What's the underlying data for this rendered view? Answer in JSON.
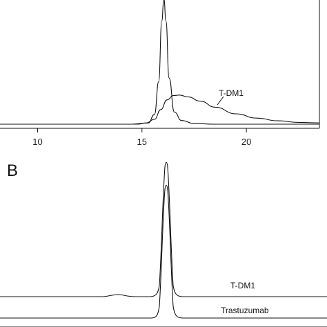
{
  "panels": {
    "a": {
      "letter": ""
    },
    "b": {
      "letter": "B"
    }
  },
  "chart_data": [
    {
      "type": "line",
      "xlabel": "",
      "ylabel": "",
      "xlim": [
        8.2,
        23.5
      ],
      "xticks": [
        10,
        15,
        20
      ],
      "grid": false,
      "series": [
        {
          "name": "",
          "x": [
            8.2,
            14.5,
            15.3,
            15.6,
            15.8,
            15.95,
            16.05,
            16.15,
            16.3,
            16.55,
            16.9,
            17.5,
            18.5,
            23.5
          ],
          "y": [
            0,
            0,
            0.01,
            0.08,
            0.35,
            0.85,
            1.03,
            0.85,
            0.38,
            0.1,
            0.03,
            0.005,
            0,
            0
          ]
        },
        {
          "name": "T-DM1",
          "x": [
            8.2,
            14.8,
            15.2,
            15.6,
            15.9,
            16.2,
            16.5,
            16.8,
            17.2,
            17.8,
            18.5,
            19.5,
            20.5,
            21.5,
            22.5,
            23.5
          ],
          "y": [
            0,
            0,
            0.01,
            0.04,
            0.12,
            0.2,
            0.235,
            0.24,
            0.225,
            0.19,
            0.14,
            0.085,
            0.05,
            0.028,
            0.015,
            0.01
          ]
        }
      ],
      "annotations": [
        {
          "text": "T-DM1"
        }
      ]
    },
    {
      "type": "line",
      "xlabel": "",
      "ylabel": "",
      "grid": false,
      "series": [
        {
          "name": "T-DM1",
          "label": "T-DM1"
        },
        {
          "name": "Trastuzumab",
          "label": "Trastuzumab"
        }
      ]
    }
  ]
}
